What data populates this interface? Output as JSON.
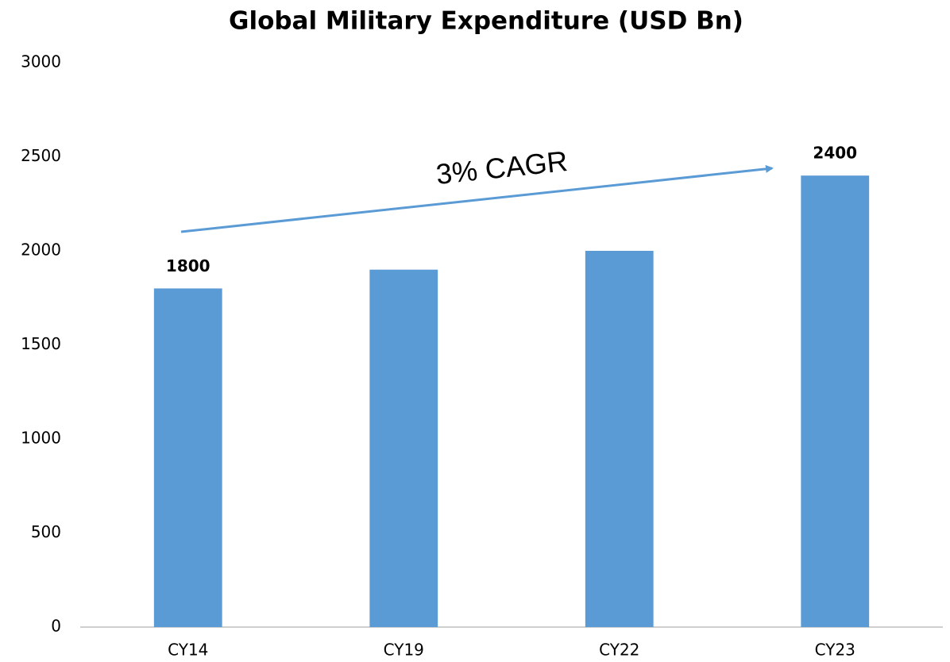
{
  "chart_data": {
    "type": "bar",
    "title": "Global Military Expenditure (USD Bn)",
    "categories": [
      "CY14",
      "CY19",
      "CY22",
      "CY23"
    ],
    "values": [
      1800,
      1900,
      2000,
      2400
    ],
    "show_value_labels": [
      true,
      false,
      false,
      true
    ],
    "color": "#5b9bd5",
    "ylim": [
      0,
      3000
    ],
    "yticks": [
      0,
      500,
      1000,
      1500,
      2000,
      2500,
      3000
    ],
    "grid": false,
    "annotation": "3% CAGR"
  }
}
